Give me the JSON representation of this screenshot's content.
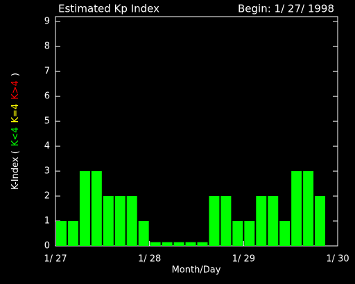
{
  "chart_data": {
    "type": "bar",
    "title": "Estimated Kp Index",
    "subtitle": "Begin: 1/ 27/ 1998",
    "xlabel": "Month/Day",
    "ylabel": [
      {
        "text": "K-Index (",
        "color": "#ffffff"
      },
      {
        "text": "K<4",
        "color": "#00ff00"
      },
      {
        "text": "K=4",
        "color": "#ffff00"
      },
      {
        "text": "K>4",
        "color": "#ff0000"
      },
      {
        "text": ")",
        "color": "#ffffff"
      }
    ],
    "x": [
      0,
      0.125,
      0.25,
      0.375,
      0.5,
      0.625,
      0.75,
      0.875,
      1,
      1.125,
      1.25,
      1.375,
      1.5,
      1.625,
      1.75,
      1.875,
      2,
      2.125,
      2.25,
      2.375,
      2.5,
      2.625,
      2.75
    ],
    "values": [
      1,
      1,
      3,
      3,
      2,
      2,
      2,
      1,
      0.15,
      0.15,
      0.15,
      0.15,
      0.15,
      2,
      2,
      1,
      1,
      2,
      2,
      1,
      3,
      3,
      2
    ],
    "color": "#00ff00",
    "xlim": [
      0,
      3
    ],
    "xticks": [
      {
        "value": 0,
        "label": "1/ 27"
      },
      {
        "value": 1,
        "label": "1/ 28"
      },
      {
        "value": 2,
        "label": "1/ 29"
      },
      {
        "value": 3,
        "label": "1/ 30"
      }
    ],
    "ylim": [
      0,
      9.2
    ],
    "yticks": [
      0,
      1,
      2,
      3,
      4,
      5,
      6,
      7,
      8,
      9
    ]
  }
}
